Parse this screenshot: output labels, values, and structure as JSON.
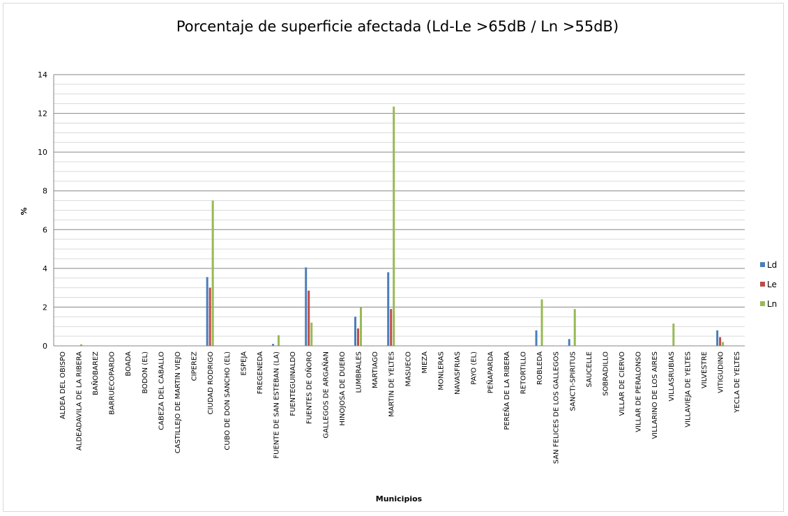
{
  "chart_data": {
    "type": "bar",
    "title": "Porcentaje de superficie afectada (Ld-Le >65dB / Ln >55dB)",
    "xlabel": "Municipios",
    "ylabel": "%",
    "ylim": [
      0,
      14
    ],
    "yticks": [
      0,
      2,
      4,
      6,
      8,
      10,
      12,
      14
    ],
    "grid": true,
    "legend_position": "right",
    "categories": [
      "ALDEA DEL OBISPO",
      "ALDEADAVILA DE LA RIBERA",
      "BAÑOBAREZ",
      "BARRUECOPARDO",
      "BOADA",
      "BODON (EL)",
      "CABEZA DEL CABALLO",
      "CASTILLEJO DE MARTIN VIEJO",
      "CIPEREZ",
      "CIUDAD RODRIGO",
      "CUBO DE DON SANCHO (EL)",
      "ESPEJA",
      "FREGENEDA",
      "FUENTE DE SAN ESTEBAN (LA)",
      "FUENTEGUINALDO",
      "FUENTES DE OÑORO",
      "GALLEGOS DE ARGAÑAN",
      "HINOJOSA DE DUERO",
      "LUMBRALES",
      "MARTIAGO",
      "MARTIN DE YELTES",
      "MASUECO",
      "MIEZA",
      "MONLERAS",
      "NAVASFRIAS",
      "PAYO (EL)",
      "PEÑAPARDA",
      "PEREÑA DE LA RIBERA",
      "RETORTILLO",
      "ROBLEDA",
      "SAN FELICES DE LOS GALLEGOS",
      "SANCTI-SPIRITUS",
      "SAUCELLE",
      "SOBRADILLO",
      "VILLAR DE CIERVO",
      "VILLAR DE PERALONSO",
      "VILLARINO DE LOS AIRES",
      "VILLASRUBIAS",
      "VILLAVIEJA DE YELTES",
      "VILVESTRE",
      "VITIGUDINO",
      "YECLA DE YELTES"
    ],
    "series": [
      {
        "name": "Ld",
        "color": "#4a7ebb",
        "values": [
          0,
          0,
          0,
          0,
          0,
          0,
          0,
          0,
          0,
          3.55,
          0,
          0,
          0,
          0.1,
          0,
          4.05,
          0,
          0,
          1.5,
          0,
          3.8,
          0,
          0,
          0,
          0,
          0,
          0,
          0,
          0,
          0.8,
          0,
          0.35,
          0,
          0,
          0,
          0,
          0,
          0,
          0,
          0,
          0.8,
          0
        ]
      },
      {
        "name": "Le",
        "color": "#be4b48",
        "values": [
          0,
          0,
          0,
          0,
          0,
          0,
          0,
          0,
          0,
          3.0,
          0,
          0,
          0,
          0,
          0,
          2.85,
          0,
          0,
          0.9,
          0,
          1.9,
          0,
          0,
          0,
          0,
          0,
          0,
          0,
          0,
          0,
          0,
          0,
          0,
          0,
          0,
          0,
          0,
          0,
          0,
          0,
          0.45,
          0
        ]
      },
      {
        "name": "Ln",
        "color": "#98b954",
        "values": [
          0,
          0.08,
          0,
          0,
          0,
          0,
          0,
          0,
          0,
          7.5,
          0,
          0,
          0,
          0.55,
          0,
          1.2,
          0,
          0,
          2.0,
          0,
          12.35,
          0,
          0,
          0,
          0,
          0,
          0,
          0,
          0,
          2.4,
          0,
          1.9,
          0,
          0,
          0,
          0,
          0,
          1.15,
          0,
          0,
          0.2,
          0
        ]
      }
    ]
  }
}
